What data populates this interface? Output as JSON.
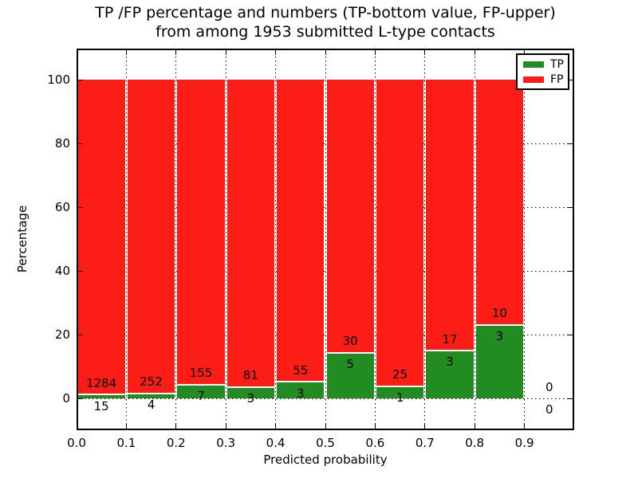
{
  "chart_data": {
    "type": "bar",
    "stacked": true,
    "title_line1": "TP /FP percentage and numbers (TP-bottom value, FP-upper)",
    "title_line2": "from among 1953 submitted L-type contacts",
    "title": "TP /FP percentage and numbers (TP-bottom value, FP-upper)\nfrom among 1953 submitted L-type contacts",
    "xlabel": "Predicted probability",
    "ylabel": "Percentage",
    "xlim": [
      0.0,
      1.0
    ],
    "ylim": [
      -10,
      110
    ],
    "xticks": [
      0.0,
      0.1,
      0.2,
      0.3,
      0.4,
      0.5,
      0.6,
      0.7,
      0.8,
      0.9
    ],
    "yticks": [
      0,
      20,
      40,
      60,
      80,
      100
    ],
    "grid": "dotted",
    "bar_unit": "percent of bin (TP+FP = 100%)",
    "legend": {
      "position": "upper right",
      "entries": [
        {
          "label": "TP",
          "color": "#228b22"
        },
        {
          "label": "FP",
          "color": "#fc1d16"
        }
      ]
    },
    "colors": {
      "tp": "#228b22",
      "fp": "#fc1d16",
      "bar_edge": "#ffffff"
    },
    "bins": [
      {
        "x0": 0.0,
        "x1": 0.1,
        "tp": 15,
        "fp": 1284
      },
      {
        "x0": 0.1,
        "x1": 0.2,
        "tp": 4,
        "fp": 252
      },
      {
        "x0": 0.2,
        "x1": 0.3,
        "tp": 7,
        "fp": 155
      },
      {
        "x0": 0.3,
        "x1": 0.4,
        "tp": 3,
        "fp": 81
      },
      {
        "x0": 0.4,
        "x1": 0.5,
        "tp": 3,
        "fp": 55
      },
      {
        "x0": 0.5,
        "x1": 0.6,
        "tp": 5,
        "fp": 30
      },
      {
        "x0": 0.6,
        "x1": 0.7,
        "tp": 1,
        "fp": 25
      },
      {
        "x0": 0.7,
        "x1": 0.8,
        "tp": 3,
        "fp": 17
      },
      {
        "x0": 0.8,
        "x1": 0.9,
        "tp": 3,
        "fp": 10
      },
      {
        "x0": 0.9,
        "x1": 1.0,
        "tp": 0,
        "fp": 0
      }
    ],
    "total_submitted": 1953
  }
}
